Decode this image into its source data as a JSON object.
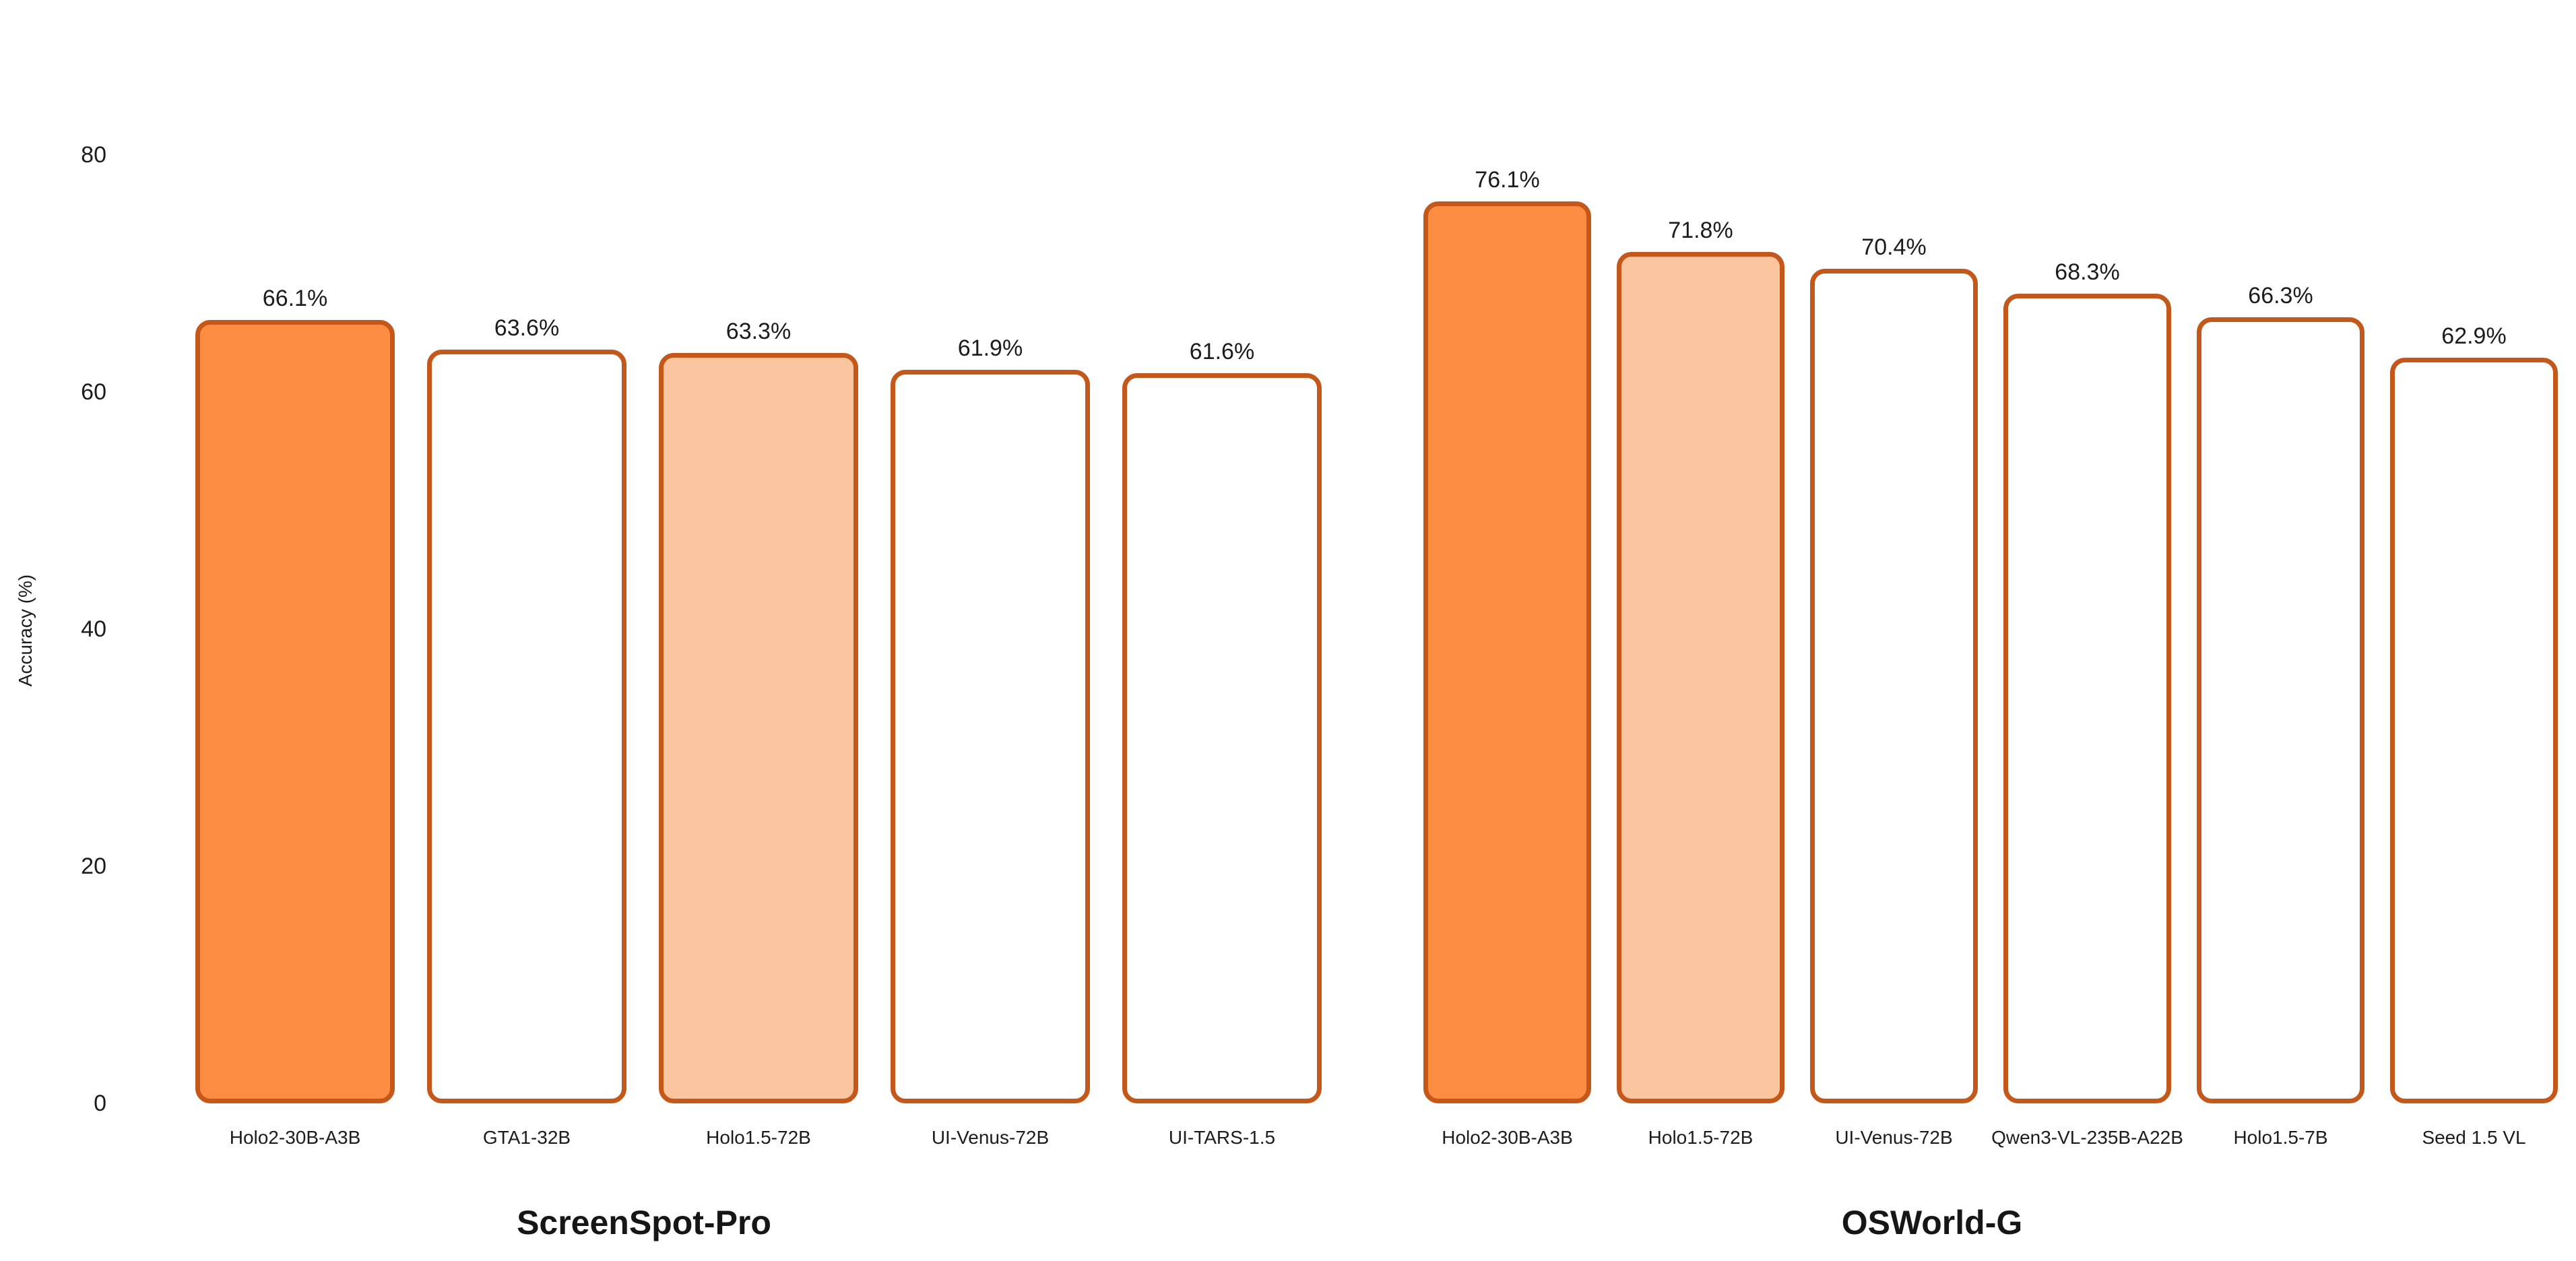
{
  "y_axis": {
    "label": "Accuracy (%)",
    "ticks": [
      "0",
      "20",
      "40",
      "60",
      "80"
    ],
    "tick_values": [
      0,
      20,
      40,
      60,
      80
    ]
  },
  "colors": {
    "bar_fill_primary": "#FB8C41",
    "bar_fill_secondary": "#FBC5A0",
    "bar_outline_fill": "#FFFFFF",
    "bar_border": "#C4571A",
    "text": "#1C1C1C",
    "background": "#FFFFFF"
  },
  "chart_data": [
    {
      "type": "bar",
      "title": "ScreenSpot-Pro",
      "xlabel": "",
      "ylabel": "Accuracy (%)",
      "ylim": [
        0,
        80
      ],
      "grid": false,
      "legend": "none",
      "categories": [
        "Holo2-30B-A3B",
        "GTA1-32B",
        "Holo1.5-72B",
        "UI-Venus-72B",
        "UI-TARS-1.5"
      ],
      "values": [
        66.1,
        63.6,
        63.3,
        61.9,
        61.6
      ],
      "value_labels": [
        "66.1%",
        "63.6%",
        "63.3%",
        "61.9%",
        "61.6%"
      ],
      "bar_styles": [
        "filled",
        "outline",
        "light",
        "outline",
        "outline"
      ]
    },
    {
      "type": "bar",
      "title": "OSWorld-G",
      "xlabel": "",
      "ylabel": "",
      "ylim": [
        0,
        80
      ],
      "grid": false,
      "legend": "none",
      "categories": [
        "Holo2-30B-A3B",
        "Holo1.5-72B",
        "UI-Venus-72B",
        "Qwen3-VL-235B-A22B",
        "Holo1.5-7B",
        "Seed 1.5 VL"
      ],
      "values": [
        76.1,
        71.8,
        70.4,
        68.3,
        66.3,
        62.9
      ],
      "value_labels": [
        "76.1%",
        "71.8%",
        "70.4%",
        "68.3%",
        "66.3%",
        "62.9%"
      ],
      "bar_styles": [
        "filled",
        "light",
        "outline",
        "outline",
        "outline",
        "outline"
      ]
    }
  ]
}
